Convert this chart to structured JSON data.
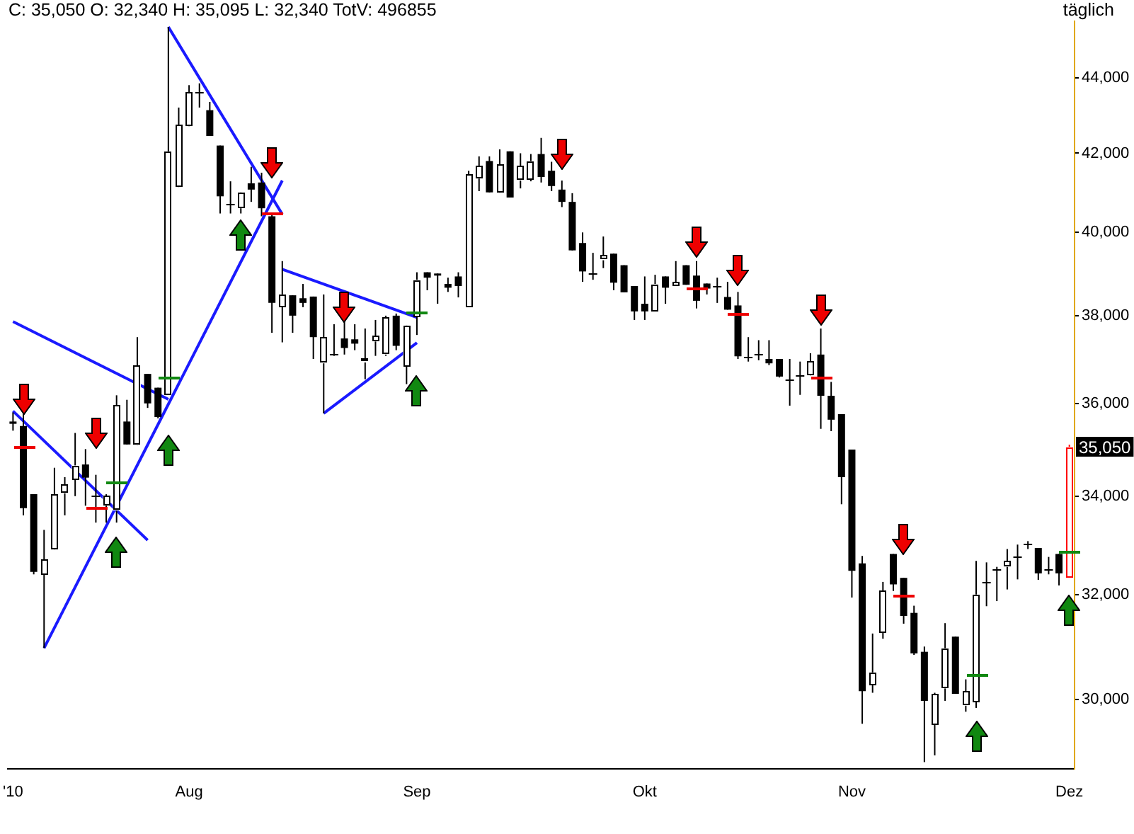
{
  "chart_data": {
    "type": "candlestick",
    "title": "C: 35,050 O: 32,340 H: 35,095 L: 32,340 TotV: 496855",
    "categories": [
      "'10",
      null,
      null,
      null,
      null,
      null,
      null,
      null,
      null,
      null,
      null,
      null,
      null,
      null,
      null,
      null,
      null,
      "Aug",
      null,
      null,
      null,
      null,
      null,
      null,
      null,
      null,
      null,
      null,
      null,
      null,
      null,
      null,
      null,
      null,
      null,
      null,
      null,
      null,
      null,
      "Sep",
      null,
      null,
      null,
      null,
      null,
      null,
      null,
      null,
      null,
      null,
      null,
      null,
      null,
      null,
      null,
      null,
      null,
      null,
      null,
      null,
      null,
      "Okt",
      null,
      null,
      null,
      null,
      null,
      null,
      null,
      null,
      null,
      null,
      null,
      null,
      null,
      null,
      null,
      null,
      null,
      null,
      null,
      "Nov",
      null,
      null,
      null,
      null,
      null,
      null,
      null,
      null,
      null,
      null,
      null,
      null,
      null,
      null,
      null,
      null,
      null,
      null,
      null,
      null,
      "Dez"
    ],
    "ohlc": [
      [
        35600,
        35800,
        35400,
        35550
      ],
      [
        35500,
        35800,
        33600,
        33750
      ],
      [
        34040,
        34040,
        32400,
        32450
      ],
      [
        32390,
        33300,
        30960,
        32700
      ],
      [
        32900,
        34600,
        32900,
        34040
      ],
      [
        34060,
        34400,
        33600,
        34250
      ],
      [
        34340,
        35350,
        34000,
        34650
      ],
      [
        34670,
        35000,
        33800,
        34390
      ],
      [
        34000,
        34450,
        33450,
        34000
      ],
      [
        33800,
        34040,
        33450,
        34000
      ],
      [
        33700,
        36180,
        33450,
        35950
      ],
      [
        35600,
        36080,
        35100,
        35100
      ],
      [
        35080,
        37500,
        35080,
        36840
      ],
      [
        36660,
        36660,
        35900,
        36000
      ],
      [
        36350,
        36350,
        35670,
        35700
      ],
      [
        36200,
        45400,
        36200,
        42050
      ],
      [
        41130,
        43200,
        41130,
        42730
      ],
      [
        42700,
        43800,
        42700,
        43600
      ],
      [
        43600,
        43850,
        43200,
        43600
      ],
      [
        43130,
        43350,
        42450,
        42450
      ],
      [
        42200,
        42200,
        40470,
        40900
      ],
      [
        40700,
        41280,
        40470,
        40700
      ],
      [
        40600,
        41000,
        40470,
        41000
      ],
      [
        41230,
        41650,
        40760,
        41070
      ],
      [
        41250,
        41500,
        40400,
        40600
      ],
      [
        40400,
        40450,
        37600,
        38300
      ],
      [
        38200,
        39300,
        37380,
        38500
      ],
      [
        38480,
        38480,
        37600,
        38000
      ],
      [
        38410,
        38750,
        38200,
        38300
      ],
      [
        38450,
        38450,
        37000,
        37500
      ],
      [
        36900,
        38500,
        35780,
        37500
      ],
      [
        37100,
        37800,
        37070,
        37100
      ],
      [
        37470,
        37900,
        37100,
        37250
      ],
      [
        37450,
        37800,
        37200,
        37350
      ],
      [
        36920,
        37700,
        36540,
        37000
      ],
      [
        37400,
        37900,
        37070,
        37530
      ],
      [
        37100,
        38000,
        37070,
        37960
      ],
      [
        38000,
        38050,
        37200,
        37300
      ],
      [
        36850,
        37780,
        36430,
        37780
      ],
      [
        37980,
        39030,
        37550,
        38850
      ],
      [
        39030,
        39030,
        38600,
        38900
      ],
      [
        39000,
        39000,
        38280,
        38950
      ],
      [
        38750,
        38900,
        38560,
        38660
      ],
      [
        38930,
        39030,
        38430,
        38700
      ],
      [
        38200,
        41550,
        38200,
        41450
      ],
      [
        41350,
        41920,
        41030,
        41680
      ],
      [
        41800,
        41920,
        41000,
        41000
      ],
      [
        40980,
        42100,
        40980,
        41700
      ],
      [
        42050,
        42050,
        40870,
        40870
      ],
      [
        41300,
        42000,
        41100,
        41680
      ],
      [
        41330,
        41980,
        41280,
        41800
      ],
      [
        41980,
        42400,
        41250,
        41390
      ],
      [
        41550,
        41780,
        41030,
        41160
      ],
      [
        41070,
        41300,
        40630,
        40760
      ],
      [
        40760,
        40980,
        39560,
        39560
      ],
      [
        39740,
        40000,
        38800,
        39050
      ],
      [
        39000,
        39500,
        38850,
        39000
      ],
      [
        39320,
        39900,
        39130,
        39440
      ],
      [
        39480,
        39480,
        38600,
        38780
      ],
      [
        39200,
        39200,
        38550,
        38550
      ],
      [
        38700,
        38700,
        37900,
        38100
      ],
      [
        38280,
        38930,
        37900,
        38100
      ],
      [
        38120,
        38970,
        38120,
        38750
      ],
      [
        38930,
        38930,
        38280,
        38660
      ],
      [
        38700,
        39300,
        38700,
        38800
      ],
      [
        39200,
        39200,
        38730,
        38730
      ],
      [
        38950,
        39300,
        38170,
        38350
      ],
      [
        38760,
        38760,
        38500,
        38640
      ],
      [
        38700,
        38900,
        38300,
        38700
      ],
      [
        38440,
        38800,
        38140,
        38140
      ],
      [
        38240,
        38560,
        37000,
        37060
      ],
      [
        37060,
        37500,
        36940,
        37060
      ],
      [
        37100,
        37430,
        36970,
        37100
      ],
      [
        37000,
        37430,
        36860,
        36900
      ],
      [
        37000,
        37000,
        36580,
        36600
      ],
      [
        36520,
        37000,
        35950,
        36520
      ],
      [
        36620,
        36940,
        36190,
        36620
      ],
      [
        36620,
        37130,
        36620,
        36940
      ],
      [
        37100,
        37700,
        35440,
        36170
      ],
      [
        36170,
        36480,
        35390,
        35640
      ],
      [
        35760,
        35760,
        33830,
        34400
      ],
      [
        34990,
        34990,
        31940,
        32470
      ],
      [
        32620,
        32770,
        29550,
        30150
      ],
      [
        30270,
        31240,
        30120,
        30500
      ],
      [
        31260,
        32250,
        31140,
        32080
      ],
      [
        32810,
        32810,
        32070,
        32200
      ],
      [
        32330,
        32330,
        31430,
        31580
      ],
      [
        31640,
        31780,
        30830,
        30860
      ],
      [
        30890,
        30990,
        28860,
        29970
      ],
      [
        29530,
        30120,
        28980,
        30100
      ],
      [
        30200,
        31440,
        29970,
        30960
      ],
      [
        31180,
        31180,
        30100,
        30100
      ],
      [
        29880,
        30370,
        29770,
        30150
      ],
      [
        29950,
        32670,
        29840,
        32000
      ],
      [
        32250,
        32640,
        31770,
        32250
      ],
      [
        32500,
        32550,
        31870,
        32500
      ],
      [
        32550,
        32910,
        32100,
        32660
      ],
      [
        32750,
        33000,
        32300,
        32750
      ],
      [
        33020,
        33070,
        32910,
        33020
      ],
      [
        32930,
        32930,
        32290,
        32420
      ],
      [
        32500,
        32750,
        32400,
        32500
      ],
      [
        32810,
        32810,
        32180,
        32420
      ],
      [
        32340,
        35095,
        32340,
        35050
      ]
    ],
    "series": [
      {
        "type": "line",
        "color": "#1a1aff",
        "values": [
          35830,
          null,
          null,
          null,
          null,
          null,
          null,
          null,
          null,
          null,
          null,
          null,
          null,
          33090,
          null,
          null,
          null,
          null,
          null,
          null,
          null,
          null,
          null,
          null,
          null,
          null,
          null,
          null,
          null,
          null,
          null,
          null,
          null,
          null,
          null,
          null,
          null,
          null,
          null,
          null,
          null,
          null,
          null,
          null,
          null,
          null,
          null,
          null,
          null,
          null,
          null,
          null,
          null,
          null,
          null,
          null,
          null,
          null,
          null,
          null,
          null,
          null,
          null,
          null,
          null,
          null,
          null,
          null,
          null,
          null,
          null,
          null,
          null,
          null,
          null,
          null,
          null,
          null,
          null,
          null,
          null,
          null,
          null,
          null,
          null,
          null,
          null,
          null,
          null,
          null,
          null,
          null,
          null,
          null,
          null,
          null,
          null,
          null,
          null,
          null,
          null,
          null,
          null
        ]
      },
      {
        "type": "line",
        "color": "#1a1aff",
        "values": [
          37860,
          null,
          null,
          null,
          null,
          null,
          null,
          null,
          null,
          null,
          null,
          null,
          null,
          null,
          null,
          36090,
          null,
          null,
          null,
          null,
          null,
          null,
          null,
          null,
          null,
          null,
          null,
          null,
          null,
          null,
          null,
          null,
          null,
          null,
          null,
          null,
          null,
          null,
          null,
          null,
          null,
          null,
          null,
          null,
          null,
          null,
          null,
          null,
          null,
          null,
          null,
          null,
          null,
          null,
          null,
          null,
          null,
          null,
          null,
          null,
          null,
          null,
          null,
          null,
          null,
          null,
          null,
          null,
          null,
          null,
          null,
          null,
          null,
          null,
          null,
          null,
          null,
          null,
          null,
          null,
          null,
          null,
          null,
          null,
          null,
          null,
          null,
          null,
          null,
          null,
          null,
          null,
          null,
          null,
          null,
          null,
          null,
          null,
          null,
          null,
          null,
          null,
          null
        ]
      },
      {
        "type": "line",
        "color": "#1a1aff",
        "values": [
          null,
          null,
          null,
          30960,
          null,
          null,
          null,
          null,
          null,
          null,
          null,
          null,
          null,
          null,
          null,
          null,
          null,
          null,
          null,
          null,
          null,
          null,
          null,
          null,
          null,
          null,
          41300,
          null,
          null,
          null,
          null,
          null,
          null,
          null,
          null,
          null,
          null,
          null,
          null,
          null,
          null,
          null,
          null,
          null,
          null,
          null,
          null,
          null,
          null,
          null,
          null,
          null,
          null,
          null,
          null,
          null,
          null,
          null,
          null,
          null,
          null,
          null,
          null,
          null,
          null,
          null,
          null,
          null,
          null,
          null,
          null,
          null,
          null,
          null,
          null,
          null,
          null,
          null,
          null,
          null,
          null,
          null,
          null,
          null,
          null,
          null,
          null,
          null,
          null,
          null,
          null,
          null,
          null,
          null,
          null,
          null,
          null,
          null,
          null,
          null,
          null,
          null,
          null
        ]
      },
      {
        "type": "line",
        "color": "#1a1aff",
        "values": [
          null,
          null,
          null,
          null,
          null,
          null,
          null,
          null,
          null,
          null,
          null,
          null,
          null,
          null,
          null,
          45400,
          null,
          null,
          null,
          null,
          null,
          null,
          null,
          null,
          null,
          null,
          40450,
          null,
          null,
          null,
          null,
          null,
          null,
          null,
          null,
          null,
          null,
          null,
          null,
          null,
          null,
          null,
          null,
          null,
          null,
          null,
          null,
          null,
          null,
          null,
          null,
          null,
          null,
          null,
          null,
          null,
          null,
          null,
          null,
          null,
          null,
          null,
          null,
          null,
          null,
          null,
          null,
          null,
          null,
          null,
          null,
          null,
          null,
          null,
          null,
          null,
          null,
          null,
          null,
          null,
          null,
          null,
          null,
          null,
          null,
          null,
          null,
          null,
          null,
          null,
          null,
          null,
          null,
          null,
          null,
          null,
          null,
          null,
          null,
          null,
          null,
          null,
          null
        ]
      },
      {
        "type": "line",
        "color": "#1a1aff",
        "values": [
          null,
          null,
          null,
          null,
          null,
          null,
          null,
          null,
          null,
          null,
          null,
          null,
          null,
          null,
          null,
          null,
          null,
          null,
          null,
          null,
          null,
          null,
          null,
          null,
          null,
          null,
          39100,
          null,
          null,
          null,
          null,
          null,
          null,
          null,
          null,
          null,
          null,
          null,
          null,
          37960,
          null,
          null,
          null,
          null,
          null,
          null,
          null,
          null,
          null,
          null,
          null,
          null,
          null,
          null,
          null,
          null,
          null,
          null,
          null,
          null,
          null,
          null,
          null,
          null,
          null,
          null,
          null,
          null,
          null,
          null,
          null,
          null,
          null,
          null,
          null,
          null,
          null,
          null,
          null,
          null,
          null,
          null,
          null,
          null,
          null,
          null,
          null,
          null,
          null,
          null,
          null,
          null,
          null,
          null,
          null,
          null,
          null,
          null,
          null,
          null,
          null,
          null,
          null
        ]
      },
      {
        "type": "line",
        "color": "#1a1aff",
        "values": [
          null,
          null,
          null,
          null,
          null,
          null,
          null,
          null,
          null,
          null,
          null,
          null,
          null,
          null,
          null,
          null,
          null,
          null,
          null,
          null,
          null,
          null,
          null,
          null,
          null,
          null,
          null,
          null,
          null,
          null,
          35780,
          null,
          null,
          null,
          null,
          null,
          null,
          null,
          null,
          37370,
          null,
          null,
          null,
          null,
          null,
          null,
          null,
          null,
          null,
          null,
          null,
          null,
          null,
          null,
          null,
          null,
          null,
          null,
          null,
          null,
          null,
          null,
          null,
          null,
          null,
          null,
          null,
          null,
          null,
          null,
          null,
          null,
          null,
          null,
          null,
          null,
          null,
          null,
          null,
          null,
          null,
          null,
          null,
          null,
          null,
          null,
          null,
          null,
          null,
          null,
          null,
          null,
          null,
          null,
          null,
          null,
          null,
          null,
          null,
          null,
          null,
          null,
          null
        ]
      }
    ],
    "ylim": [
      28740,
      45560
    ],
    "yticks": [
      {
        "value": 30000,
        "label": "30,000"
      },
      {
        "value": 32000,
        "label": "32,000"
      },
      {
        "value": 34000,
        "label": "34,000"
      },
      {
        "value": 36000,
        "label": "36,000"
      },
      {
        "value": 38000,
        "label": "38,000"
      },
      {
        "value": 40000,
        "label": "40,000"
      },
      {
        "value": 42000,
        "label": "42,000"
      },
      {
        "value": 44000,
        "label": "44,000"
      }
    ],
    "log": true,
    "annotations": [
      "täglich",
      {
        "text": "35,050",
        "y": 35050
      }
    ]
  }
}
